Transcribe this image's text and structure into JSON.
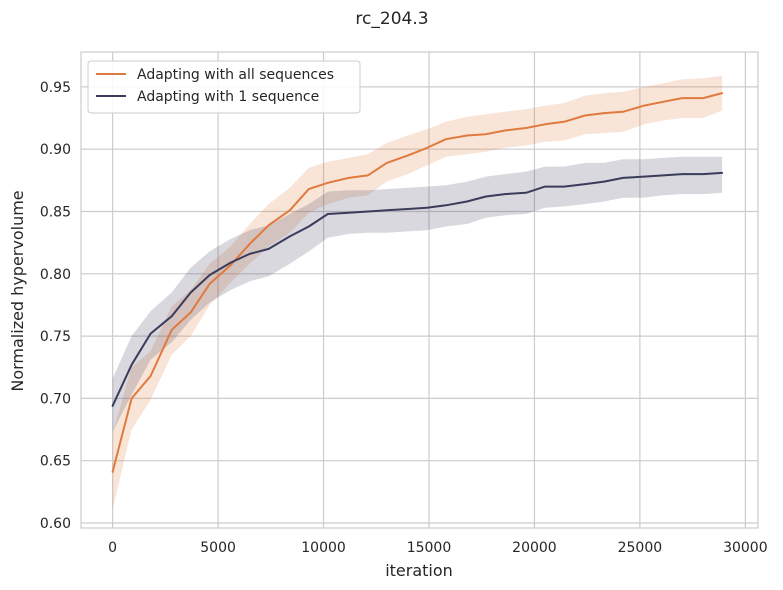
{
  "chart_data": {
    "type": "line",
    "title": "rc_204.3",
    "xlabel": "iteration",
    "ylabel": "Normalized hypervolume",
    "xlim": [
      -1500,
      30600
    ],
    "ylim": [
      0.596,
      0.978
    ],
    "xticks": [
      0,
      5000,
      10000,
      15000,
      20000,
      25000,
      30000
    ],
    "xtick_labels": [
      "0",
      "5000",
      "10000",
      "15000",
      "20000",
      "25000",
      "30000"
    ],
    "yticks": [
      0.6,
      0.65,
      0.7,
      0.75,
      0.8,
      0.85,
      0.9,
      0.95
    ],
    "ytick_labels": [
      "0.60",
      "0.65",
      "0.70",
      "0.75",
      "0.80",
      "0.85",
      "0.90",
      "0.95"
    ],
    "grid": true,
    "legend_position": "top-left",
    "series": [
      {
        "name": "Adapting with all sequences",
        "color": "#e07a3e",
        "x": [
          0,
          900,
          1800,
          2800,
          3700,
          4600,
          5600,
          6500,
          7400,
          8400,
          9300,
          10200,
          11200,
          12100,
          13000,
          14000,
          14900,
          15800,
          16800,
          17700,
          18600,
          19600,
          20500,
          21400,
          22400,
          23300,
          24200,
          25200,
          26100,
          27000,
          28000,
          28900
        ],
        "values": [
          0.641,
          0.7,
          0.718,
          0.755,
          0.769,
          0.792,
          0.807,
          0.824,
          0.839,
          0.851,
          0.868,
          0.873,
          0.877,
          0.879,
          0.889,
          0.895,
          0.901,
          0.908,
          0.911,
          0.912,
          0.915,
          0.917,
          0.92,
          0.922,
          0.927,
          0.929,
          0.93,
          0.935,
          0.938,
          0.941,
          0.941,
          0.945
        ],
        "lower": [
          0.611,
          0.675,
          0.699,
          0.735,
          0.75,
          0.775,
          0.793,
          0.808,
          0.822,
          0.833,
          0.849,
          0.856,
          0.861,
          0.863,
          0.874,
          0.88,
          0.887,
          0.894,
          0.896,
          0.898,
          0.901,
          0.903,
          0.906,
          0.907,
          0.912,
          0.913,
          0.914,
          0.92,
          0.923,
          0.925,
          0.925,
          0.931
        ],
        "upper": [
          0.672,
          0.725,
          0.738,
          0.774,
          0.787,
          0.808,
          0.822,
          0.84,
          0.856,
          0.869,
          0.885,
          0.89,
          0.893,
          0.896,
          0.905,
          0.911,
          0.916,
          0.922,
          0.926,
          0.928,
          0.93,
          0.932,
          0.935,
          0.937,
          0.943,
          0.945,
          0.946,
          0.95,
          0.953,
          0.956,
          0.957,
          0.959
        ]
      },
      {
        "name": "Adapting with 1 sequence",
        "color": "#3b3b5c",
        "x": [
          0,
          900,
          1800,
          2800,
          3700,
          4600,
          5600,
          6500,
          7400,
          8400,
          9300,
          10200,
          11200,
          12100,
          13000,
          14000,
          14900,
          15800,
          16800,
          17700,
          18600,
          19600,
          20500,
          21400,
          22400,
          23300,
          24200,
          25200,
          26100,
          27000,
          28000,
          28900
        ],
        "values": [
          0.694,
          0.727,
          0.752,
          0.766,
          0.785,
          0.799,
          0.809,
          0.816,
          0.82,
          0.83,
          0.838,
          0.848,
          0.849,
          0.85,
          0.851,
          0.852,
          0.853,
          0.855,
          0.858,
          0.862,
          0.864,
          0.865,
          0.87,
          0.87,
          0.872,
          0.874,
          0.877,
          0.878,
          0.879,
          0.88,
          0.88,
          0.881
        ],
        "lower": [
          0.673,
          0.703,
          0.731,
          0.745,
          0.763,
          0.777,
          0.787,
          0.794,
          0.798,
          0.808,
          0.818,
          0.829,
          0.832,
          0.833,
          0.833,
          0.834,
          0.835,
          0.838,
          0.84,
          0.845,
          0.847,
          0.848,
          0.853,
          0.854,
          0.856,
          0.858,
          0.861,
          0.861,
          0.863,
          0.864,
          0.864,
          0.865
        ],
        "upper": [
          0.716,
          0.75,
          0.77,
          0.785,
          0.805,
          0.818,
          0.828,
          0.835,
          0.839,
          0.848,
          0.856,
          0.866,
          0.867,
          0.867,
          0.868,
          0.869,
          0.87,
          0.871,
          0.874,
          0.878,
          0.88,
          0.882,
          0.886,
          0.886,
          0.889,
          0.889,
          0.892,
          0.892,
          0.893,
          0.894,
          0.894,
          0.894
        ]
      }
    ]
  }
}
